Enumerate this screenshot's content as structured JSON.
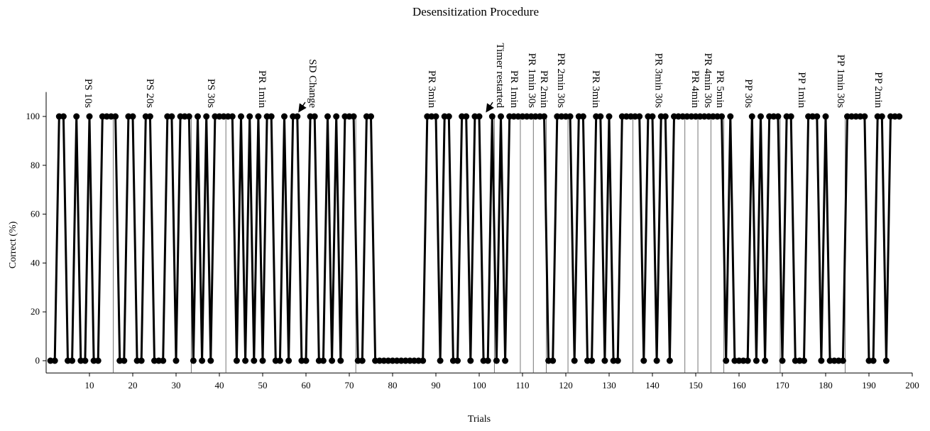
{
  "chart_data": {
    "type": "line",
    "title": "Desensitization Procedure",
    "x_label": "Trials",
    "y_label": "Correct (%)",
    "xlim": [
      0,
      200
    ],
    "ylim": [
      -5,
      110
    ],
    "xticks": [
      10,
      20,
      30,
      40,
      50,
      60,
      70,
      80,
      90,
      100,
      110,
      120,
      130,
      140,
      150,
      160,
      170,
      180,
      190,
      200
    ],
    "yticks": [
      0,
      20,
      40,
      60,
      80,
      100
    ],
    "color": "#000000",
    "x": [
      1,
      2,
      3,
      4,
      5,
      6,
      7,
      8,
      9,
      10,
      11,
      12,
      13,
      14,
      15,
      16,
      17,
      18,
      19,
      20,
      21,
      22,
      23,
      24,
      25,
      26,
      27,
      28,
      29,
      30,
      31,
      32,
      33,
      34,
      35,
      36,
      37,
      38,
      39,
      40,
      41,
      42,
      43,
      44,
      45,
      46,
      47,
      48,
      49,
      50,
      51,
      52,
      53,
      54,
      55,
      56,
      57,
      58,
      59,
      60,
      61,
      62,
      63,
      64,
      65,
      66,
      67,
      68,
      69,
      70,
      71,
      72,
      73,
      74,
      75,
      76,
      77,
      78,
      79,
      80,
      81,
      82,
      83,
      84,
      85,
      86,
      87,
      88,
      89,
      90,
      91,
      92,
      93,
      94,
      95,
      96,
      97,
      98,
      99,
      100,
      101,
      102,
      103,
      104,
      105,
      106,
      107,
      108,
      109,
      110,
      111,
      112,
      113,
      114,
      115,
      116,
      117,
      118,
      119,
      120,
      121,
      122,
      123,
      124,
      125,
      126,
      127,
      128,
      129,
      130,
      131,
      132,
      133,
      134,
      135,
      136,
      137,
      138,
      139,
      140,
      141,
      142,
      143,
      144,
      145,
      146,
      147,
      148,
      149,
      150,
      151,
      152,
      153,
      154,
      155,
      156,
      157,
      158,
      159,
      160,
      161,
      162,
      163,
      164,
      165,
      166,
      167,
      168,
      169,
      170,
      171,
      172,
      173,
      174,
      175,
      176,
      177,
      178,
      179,
      180,
      181,
      182,
      183,
      184,
      185,
      186,
      187,
      188,
      189,
      190,
      191,
      192,
      193,
      194,
      195,
      196,
      197
    ],
    "values": [
      0,
      0,
      100,
      100,
      0,
      0,
      100,
      0,
      0,
      100,
      0,
      0,
      100,
      100,
      100,
      100,
      0,
      0,
      100,
      100,
      0,
      0,
      100,
      100,
      0,
      0,
      0,
      100,
      100,
      0,
      100,
      100,
      100,
      0,
      100,
      0,
      100,
      0,
      100,
      100,
      100,
      100,
      100,
      0,
      100,
      0,
      100,
      0,
      100,
      0,
      100,
      100,
      0,
      0,
      100,
      0,
      100,
      100,
      0,
      0,
      100,
      100,
      0,
      0,
      100,
      0,
      100,
      0,
      100,
      100,
      100,
      0,
      0,
      100,
      100,
      0,
      0,
      0,
      0,
      0,
      0,
      0,
      0,
      0,
      0,
      0,
      0,
      100,
      100,
      100,
      0,
      100,
      100,
      0,
      0,
      100,
      100,
      0,
      100,
      100,
      0,
      0,
      100,
      0,
      100,
      0,
      100,
      100,
      100,
      100,
      100,
      100,
      100,
      100,
      100,
      0,
      0,
      100,
      100,
      100,
      100,
      0,
      100,
      100,
      0,
      0,
      100,
      100,
      0,
      100,
      0,
      0,
      100,
      100,
      100,
      100,
      100,
      0,
      100,
      100,
      0,
      100,
      100,
      0,
      100,
      100,
      100,
      100,
      100,
      100,
      100,
      100,
      100,
      100,
      100,
      100,
      0,
      100,
      0,
      0,
      0,
      0,
      100,
      0,
      100,
      0,
      100,
      100,
      100,
      0,
      100,
      100,
      0,
      0,
      0,
      100,
      100,
      100,
      0,
      100,
      0,
      0,
      0,
      0,
      100,
      100,
      100,
      100,
      100,
      0,
      0,
      100,
      100,
      0,
      100,
      100,
      100
    ],
    "phase_lines": [
      15.5,
      33.5,
      41.5,
      71.5,
      103.5,
      109.5,
      112.5,
      115.5,
      120.5,
      135.5,
      147.5,
      150.5,
      153.5,
      156.5,
      169.5,
      184.5
    ],
    "annotations": [
      {
        "text": "PS 10s",
        "x": 9
      },
      {
        "text": "PS 20s",
        "x": 23.3
      },
      {
        "text": "PS 30s",
        "x": 37.4
      },
      {
        "text": "PR 1min",
        "x": 49.2
      },
      {
        "text": "SD Change",
        "x": 60.8,
        "arrow": true
      },
      {
        "text": "PR 3min",
        "x": 88.4
      },
      {
        "text": "Timer restarted",
        "x": 104.1,
        "arrow": true
      },
      {
        "text": "PR 1min",
        "x": 107.4
      },
      {
        "text": "PR 1min 30s",
        "x": 111.5
      },
      {
        "text": "PR 2min",
        "x": 114.3
      },
      {
        "text": "PR 2min 30s",
        "x": 118.2
      },
      {
        "text": "PR 3min",
        "x": 126.2
      },
      {
        "text": "PR 3min 30s",
        "x": 140.7
      },
      {
        "text": "PR 4min",
        "x": 149.2
      },
      {
        "text": "PR 4min 30s",
        "x": 152.1
      },
      {
        "text": "PR 5min",
        "x": 154.9
      },
      {
        "text": "PP 30s",
        "x": 161.5
      },
      {
        "text": "PP 1min",
        "x": 173.8
      },
      {
        "text": "PP 1min 30s",
        "x": 182.8
      },
      {
        "text": "PP 2min",
        "x": 191.5
      }
    ]
  }
}
